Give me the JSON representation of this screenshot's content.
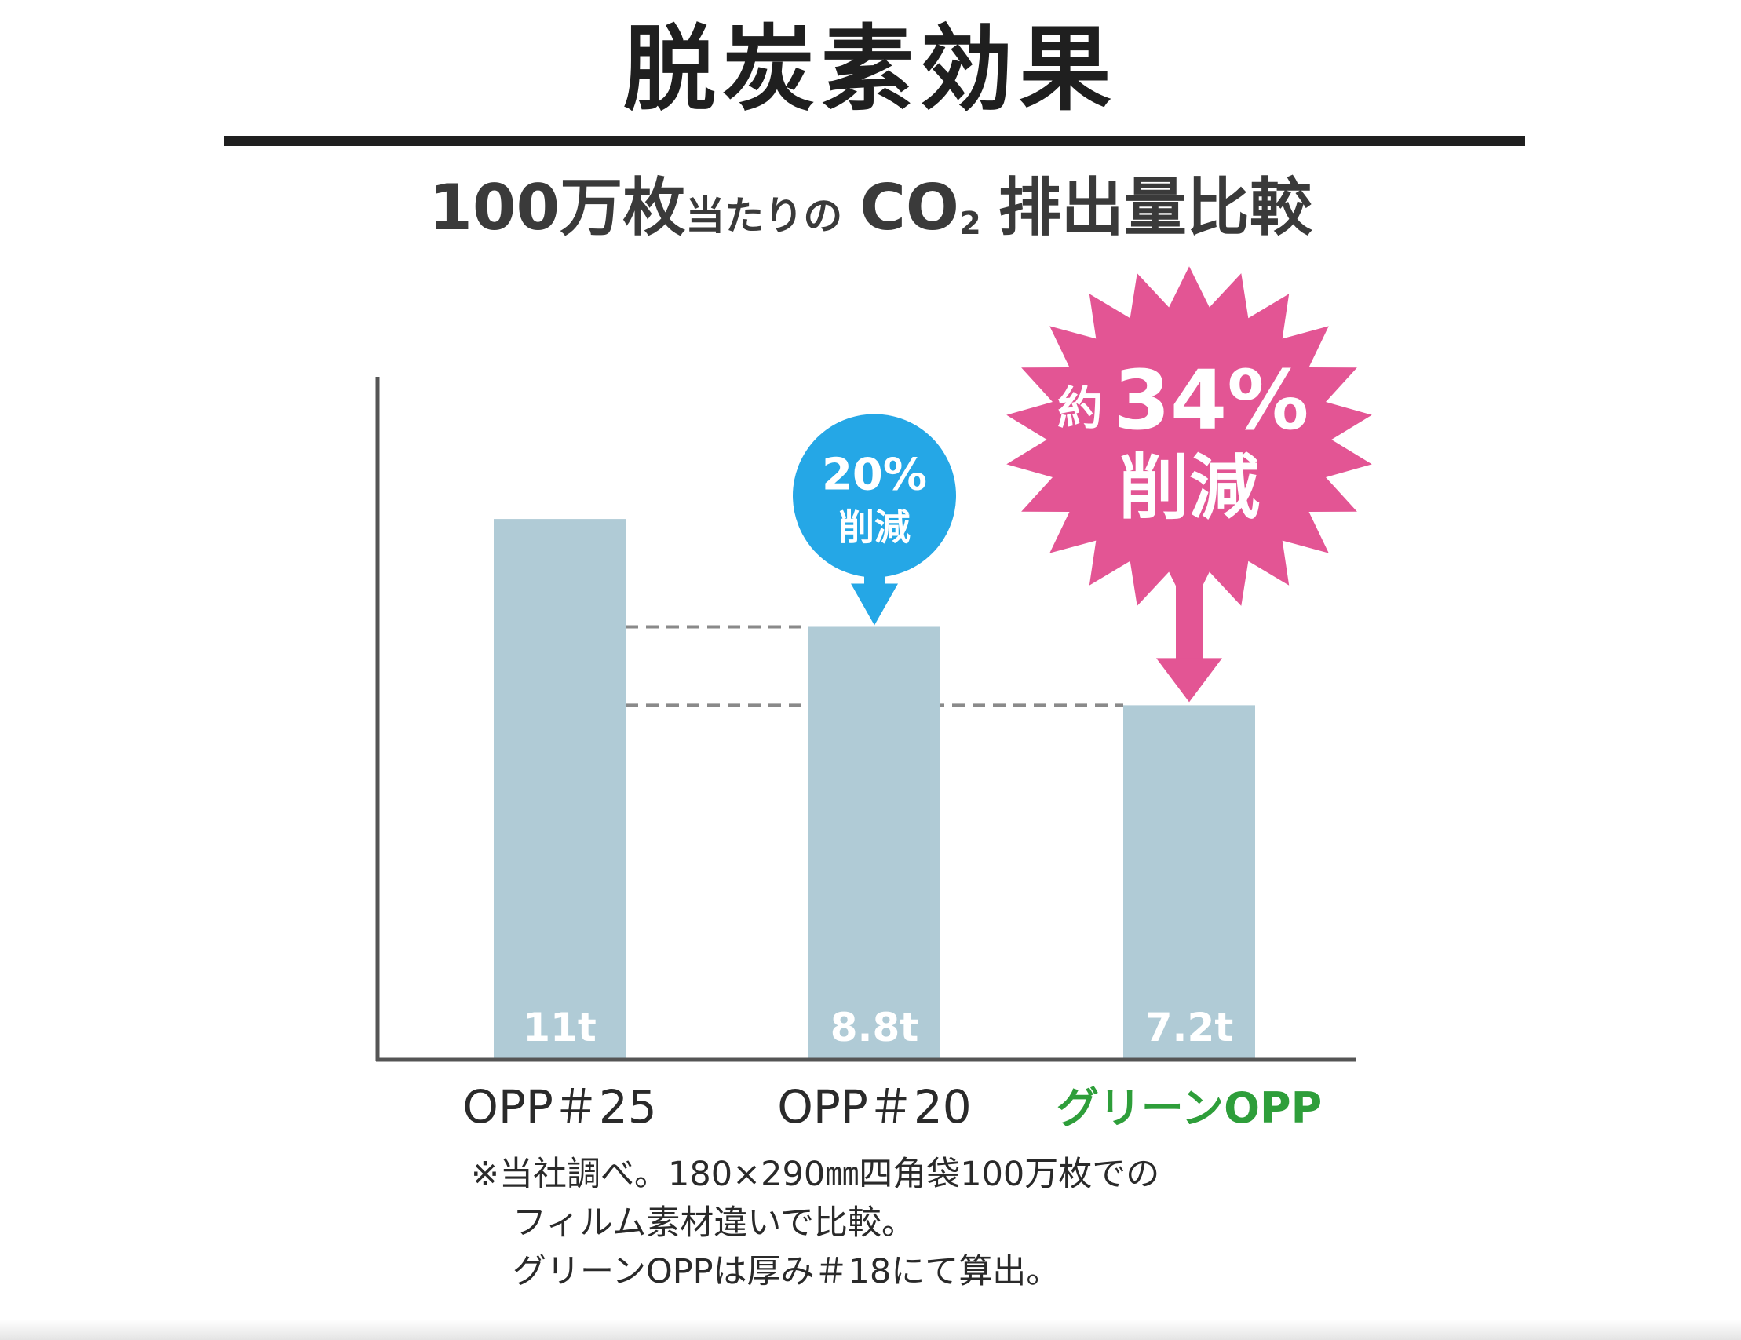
{
  "header": {
    "title": "脱炭素効果",
    "subtitle": {
      "part1": "100万枚",
      "part2": "当たりの",
      "part3": "CO",
      "part4": "2",
      "part5": "排出量比較"
    }
  },
  "chart_data": {
    "type": "bar",
    "title": "100万枚当たりのCO2排出量比較",
    "xlabel": "",
    "ylabel": "",
    "categories": [
      "OPP＃25",
      "OPP＃20",
      "グリーンOPP"
    ],
    "values": [
      11,
      8.8,
      7.2
    ],
    "value_labels": [
      "11t",
      "8.8t",
      "7.2t"
    ],
    "ylim": [
      0,
      13.9
    ],
    "grid": false,
    "legend": "none",
    "bar_color": "#b0cbd6",
    "highlight_category_color": "#2e9e3a",
    "guide_lines": [
      8.8,
      7.2
    ],
    "annotations": [
      {
        "target": "OPP＃20",
        "line1": "20%",
        "line2": "削減",
        "color": "#25a7e6"
      },
      {
        "target": "グリーンOPP",
        "prefix": "約",
        "line1": "34%",
        "line2": "削減",
        "color": "#e35594"
      }
    ]
  },
  "footnote": {
    "line1": "※当社調べ。180×290㎜四角袋100万枚での",
    "line2": "フィルム素材違いで比較。",
    "line3": "グリーンOPPは厚み＃18にて算出。"
  }
}
